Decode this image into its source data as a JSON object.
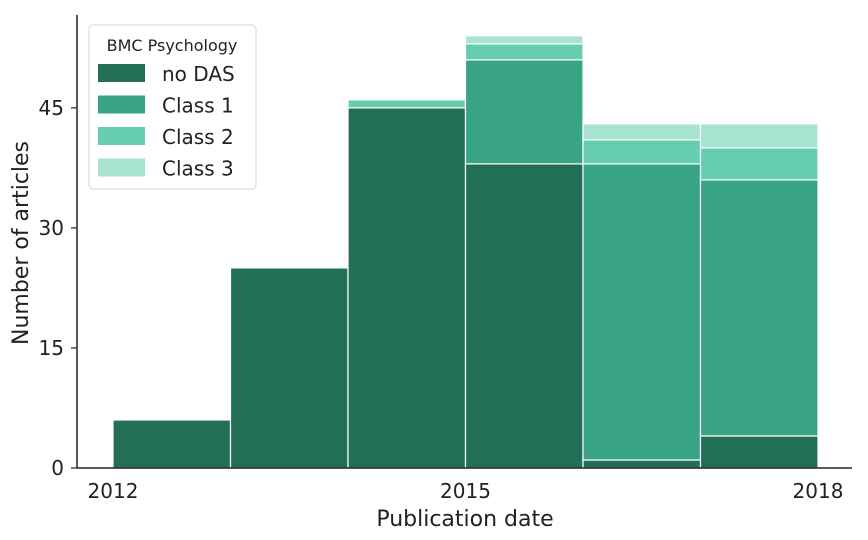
{
  "chart_data": {
    "type": "bar",
    "stacked": true,
    "categories": [
      "2012",
      "2013",
      "2014",
      "2015",
      "2016",
      "2017"
    ],
    "series": [
      {
        "name": "no DAS",
        "color": "#236e57",
        "values": [
          6,
          25,
          45,
          38,
          1,
          4
        ]
      },
      {
        "name": "Class 1",
        "color": "#38a483",
        "values": [
          0,
          0,
          0,
          13,
          37,
          32
        ]
      },
      {
        "name": "Class 2",
        "color": "#66ceae",
        "values": [
          0,
          0,
          1,
          2,
          3,
          4
        ]
      },
      {
        "name": "Class 3",
        "color": "#a8e4d1",
        "values": [
          0,
          0,
          0,
          1,
          2,
          3
        ]
      }
    ],
    "x_ticks": [
      "2012",
      "2015",
      "2018"
    ],
    "y_ticks": [
      "0",
      "15",
      "30",
      "45"
    ],
    "xlabel": "Publication date",
    "ylabel": "Number of articles",
    "ylim": [
      0,
      56.6
    ],
    "legend": {
      "title": "BMC Psychology",
      "placement": "top-left"
    },
    "grid": false
  }
}
